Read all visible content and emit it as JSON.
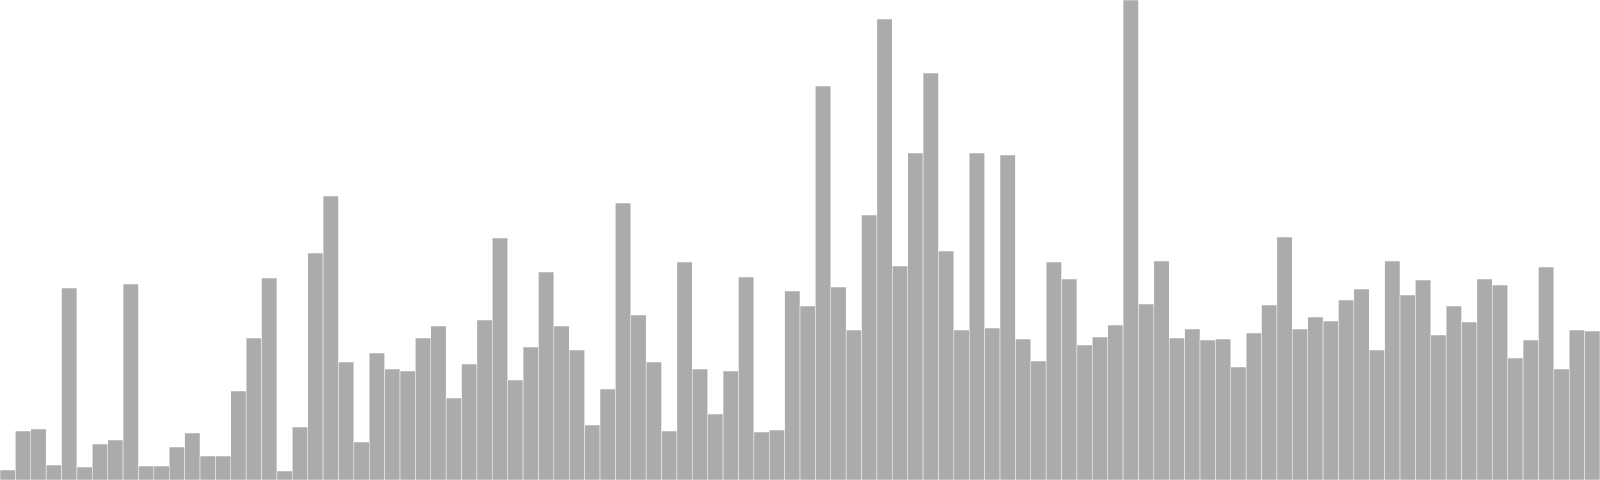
{
  "chart_data": {
    "type": "bar",
    "title": "",
    "xlabel": "",
    "ylabel": "",
    "grid": false,
    "legend": "none",
    "bar_color": "#ababab",
    "ylim": [
      0,
      480
    ],
    "values": [
      10,
      49,
      51,
      15,
      192,
      13,
      36,
      40,
      196,
      14,
      14,
      33,
      47,
      24,
      24,
      89,
      142,
      202,
      9,
      53,
      227,
      284,
      118,
      38,
      127,
      111,
      109,
      142,
      154,
      82,
      116,
      160,
      242,
      100,
      133,
      208,
      154,
      130,
      55,
      91,
      277,
      165,
      118,
      49,
      218,
      111,
      66,
      109,
      203,
      48,
      50,
      189,
      174,
      394,
      193,
      150,
      265,
      461,
      214,
      327,
      407,
      229,
      150,
      327,
      152,
      325,
      141,
      119,
      218,
      201,
      135,
      143,
      155,
      480,
      176,
      219,
      142,
      151,
      140,
      141,
      113,
      147,
      175,
      243,
      151,
      163,
      159,
      180,
      191,
      130,
      219,
      185,
      200,
      145,
      174,
      158,
      201,
      195,
      122,
      140,
      213,
      111,
      150,
      149
    ]
  }
}
